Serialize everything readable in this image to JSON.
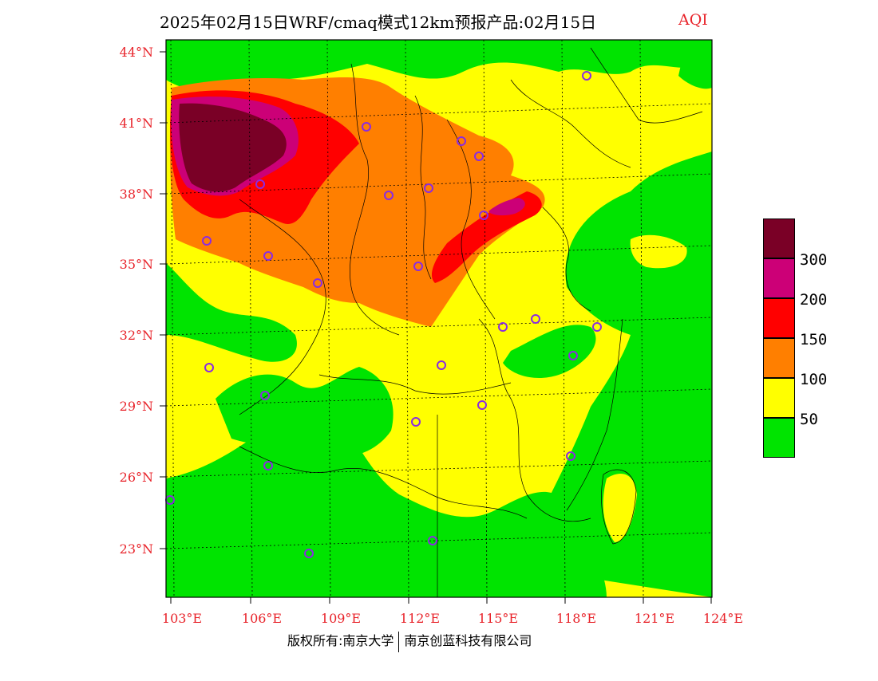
{
  "header": {
    "title": "2025年02月15日WRF/cmaq模式12km预报产品:02月15日",
    "tag": "AQI"
  },
  "axes": {
    "lat_labels": [
      "44°N",
      "41°N",
      "38°N",
      "35°N",
      "32°N",
      "29°N",
      "26°N",
      "23°N"
    ],
    "lon_labels": [
      "103°E",
      "106°E",
      "109°E",
      "112°E",
      "115°E",
      "118°E",
      "121°E",
      "124°E"
    ]
  },
  "legend": {
    "labels": [
      "300",
      "200",
      "150",
      "100",
      "50"
    ],
    "colors": [
      "#7a0026",
      "#cc0077",
      "#ff0000",
      "#ff7f00",
      "#ffff00",
      "#00e400"
    ]
  },
  "footer": {
    "left": "版权所有:南京大学",
    "right": "南京创蓝科技有限公司"
  },
  "colors": {
    "good": "#00e400",
    "moderate": "#ffff00",
    "usg": "#ff7f00",
    "unhealthy": "#ff0000",
    "very_unhealthy": "#cc0077",
    "hazardous": "#7a0026",
    "label_red": "#e8232a",
    "city_marker": "#8a2be2"
  }
}
